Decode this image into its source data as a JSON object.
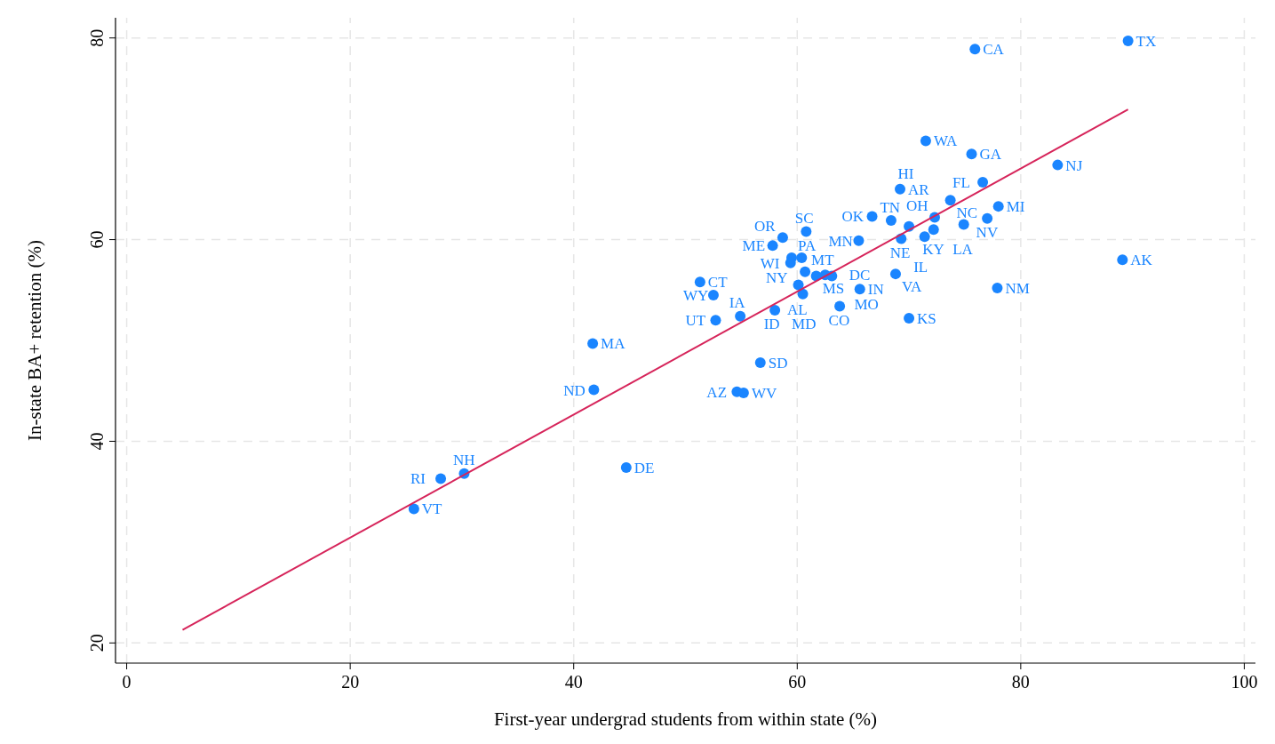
{
  "chart_data": {
    "type": "scatter",
    "xlabel": "First-year undergrad students from within state (%)",
    "ylabel": "In-state BA+ retention (%)",
    "xlim": [
      -1,
      101
    ],
    "ylim": [
      18,
      82
    ],
    "xticks": [
      0,
      20,
      40,
      60,
      80,
      100
    ],
    "yticks": [
      20,
      40,
      60,
      80
    ],
    "grid": true,
    "series": [
      {
        "marker": "circle",
        "color": "#1a85ff",
        "x": [
          89.6,
          75.9,
          71.5,
          75.6,
          83.3,
          76.6,
          69.2,
          73.7,
          78.0,
          66.7,
          72.3,
          77.0,
          74.9,
          72.2,
          69.3,
          68.4,
          70.0,
          71.4,
          65.5,
          60.8,
          58.7,
          57.8,
          59.5,
          60.4,
          59.4,
          60.7,
          61.7,
          62.5,
          63.1,
          60.1,
          60.5,
          65.6,
          63.8,
          58.0,
          51.3,
          52.5,
          52.7,
          54.9,
          68.8,
          89.1,
          77.9,
          70.0,
          41.7,
          56.7,
          54.6,
          55.2,
          41.8,
          44.7,
          30.2,
          28.1,
          25.7
        ],
        "values": [
          79.7,
          78.9,
          69.8,
          68.5,
          67.4,
          65.7,
          65.0,
          63.9,
          63.3,
          62.3,
          62.2,
          62.1,
          61.5,
          61.0,
          60.1,
          61.9,
          61.3,
          60.3,
          59.9,
          60.8,
          60.2,
          59.4,
          58.2,
          58.2,
          57.7,
          56.8,
          56.4,
          56.5,
          56.4,
          55.5,
          54.6,
          55.1,
          53.4,
          53.0,
          55.8,
          54.5,
          52.0,
          52.4,
          56.6,
          58.0,
          55.2,
          52.2,
          49.7,
          47.8,
          44.9,
          44.8,
          45.1,
          37.4,
          36.8,
          36.3,
          33.3
        ]
      },
      {
        "type": "line",
        "color": "#d6245a",
        "x": [
          5,
          89.6
        ],
        "values": [
          21.3,
          72.9
        ]
      }
    ],
    "annotations": [
      {
        "text": "TX",
        "x": 89.6,
        "y": 79.7
      },
      {
        "text": "CA",
        "x": 75.9,
        "y": 78.9
      },
      {
        "text": "WA",
        "x": 71.5,
        "y": 69.8
      },
      {
        "text": "GA",
        "x": 75.6,
        "y": 68.5
      },
      {
        "text": "NJ",
        "x": 83.3,
        "y": 67.4
      },
      {
        "text": "FL",
        "x": 76.6,
        "y": 65.7
      },
      {
        "text": "AR",
        "x": 69.2,
        "y": 65.0
      },
      {
        "text": "NC",
        "x": 73.7,
        "y": 63.9
      },
      {
        "text": "MI",
        "x": 78.0,
        "y": 63.3
      },
      {
        "text": "OK",
        "x": 66.7,
        "y": 62.3
      },
      {
        "text": "OH",
        "x": 72.3,
        "y": 62.2
      },
      {
        "text": "NV",
        "x": 77.0,
        "y": 62.1
      },
      {
        "text": "LA",
        "x": 74.9,
        "y": 61.5
      },
      {
        "text": "KY",
        "x": 72.2,
        "y": 61.0
      },
      {
        "text": "NE",
        "x": 69.3,
        "y": 60.1
      },
      {
        "text": "TN",
        "x": 68.4,
        "y": 61.9
      },
      {
        "text": "HI",
        "x": 70.0,
        "y": 61.3
      },
      {
        "text": "IL",
        "x": 71.4,
        "y": 60.3
      },
      {
        "text": "MN",
        "x": 65.5,
        "y": 59.9
      },
      {
        "text": "SC",
        "x": 60.8,
        "y": 60.8
      },
      {
        "text": "OR",
        "x": 58.7,
        "y": 60.2
      },
      {
        "text": "ME",
        "x": 57.8,
        "y": 59.4
      },
      {
        "text": "PA",
        "x": 59.5,
        "y": 58.2
      },
      {
        "text": "NY",
        "x": 60.4,
        "y": 58.2
      },
      {
        "text": "WI",
        "x": 59.4,
        "y": 57.7
      },
      {
        "text": "MT",
        "x": 60.7,
        "y": 56.8
      },
      {
        "text": "MS",
        "x": 61.7,
        "y": 56.4
      },
      {
        "text": "DC",
        "x": 62.5,
        "y": 56.5
      },
      {
        "text": "MO",
        "x": 63.1,
        "y": 56.4
      },
      {
        "text": "AL",
        "x": 60.1,
        "y": 55.5
      },
      {
        "text": "MD",
        "x": 60.5,
        "y": 54.6
      },
      {
        "text": "IN",
        "x": 65.6,
        "y": 55.1
      },
      {
        "text": "CO",
        "x": 63.8,
        "y": 53.4
      },
      {
        "text": "ID",
        "x": 58.0,
        "y": 53.0
      },
      {
        "text": "CT",
        "x": 51.3,
        "y": 55.8
      },
      {
        "text": "WY",
        "x": 52.5,
        "y": 54.5
      },
      {
        "text": "UT",
        "x": 52.7,
        "y": 52.0
      },
      {
        "text": "IA",
        "x": 54.9,
        "y": 52.4
      },
      {
        "text": "VA",
        "x": 68.8,
        "y": 56.6
      },
      {
        "text": "AK",
        "x": 89.1,
        "y": 58.0
      },
      {
        "text": "NM",
        "x": 77.9,
        "y": 55.2
      },
      {
        "text": "KS",
        "x": 70.0,
        "y": 52.2
      },
      {
        "text": "MA",
        "x": 41.7,
        "y": 49.7
      },
      {
        "text": "SD",
        "x": 56.7,
        "y": 47.8
      },
      {
        "text": "AZ",
        "x": 54.6,
        "y": 44.9
      },
      {
        "text": "WV",
        "x": 55.2,
        "y": 44.8
      },
      {
        "text": "ND",
        "x": 41.8,
        "y": 45.1
      },
      {
        "text": "DE",
        "x": 44.7,
        "y": 37.4
      },
      {
        "text": "NH",
        "x": 30.2,
        "y": 36.8
      },
      {
        "text": "RI",
        "x": 28.1,
        "y": 36.3
      },
      {
        "text": "VT",
        "x": 25.7,
        "y": 33.3
      }
    ]
  }
}
